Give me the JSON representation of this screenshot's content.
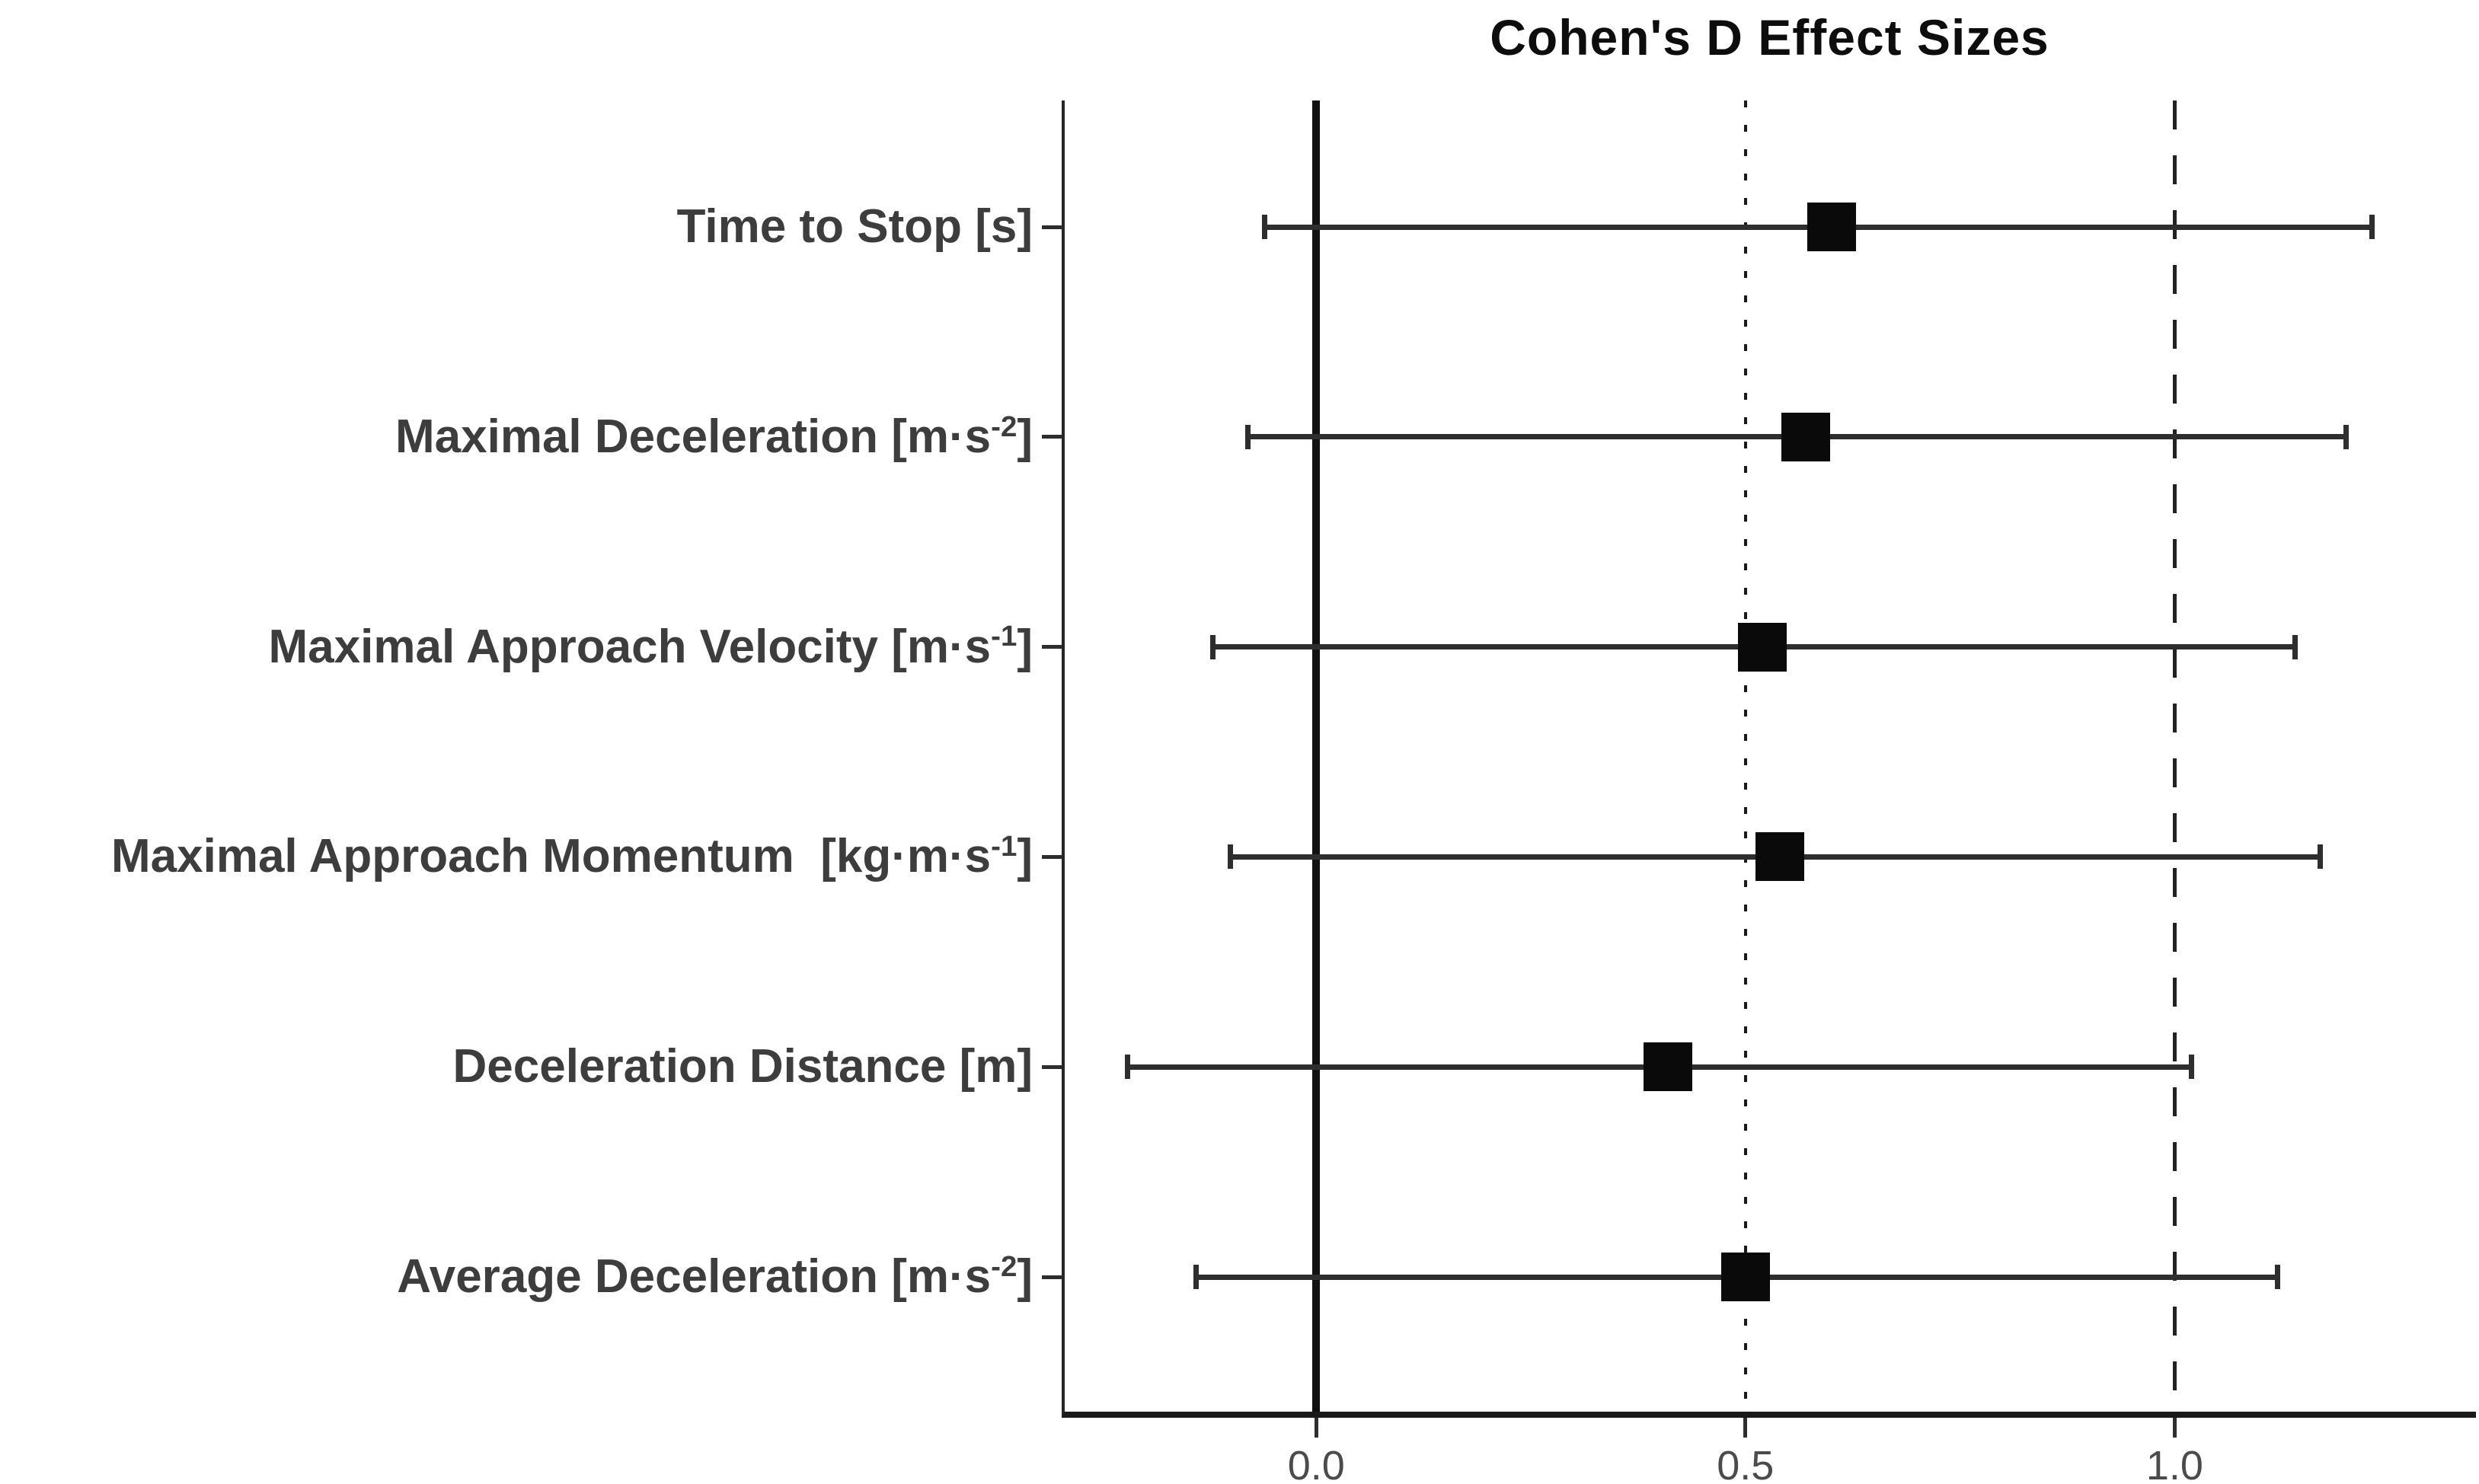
{
  "chart_data": {
    "type": "scatter",
    "subtype": "forest-dot-whisker",
    "title": "Cohen's D Effect Sizes",
    "xlabel": "",
    "ylabel": "",
    "xlim": [
      -0.293,
      1.351
    ],
    "grid": false,
    "legend": null,
    "marker_shape": "square",
    "x_ticks": [
      {
        "value": 0.0,
        "label": "0.0"
      },
      {
        "value": 0.5,
        "label": "0.5"
      },
      {
        "value": 1.0,
        "label": "1.0"
      }
    ],
    "reference_lines": [
      {
        "value": 0.0,
        "style": "solid"
      },
      {
        "value": 0.5,
        "style": "dotted"
      },
      {
        "value": 1.0,
        "style": "dashed"
      }
    ],
    "rows": [
      {
        "label": "Time to Stop",
        "unit_pre": " [s",
        "unit_sup": "",
        "unit_post": "]",
        "d": 0.6,
        "ci_low": -0.06,
        "ci_high": 1.23
      },
      {
        "label": "Maximal Deceleration",
        "unit_pre": " [m·s",
        "unit_sup": "-2",
        "unit_post": "]",
        "d": 0.57,
        "ci_low": -0.08,
        "ci_high": 1.2
      },
      {
        "label": "Maximal Approach Velocity",
        "unit_pre": " [m·s",
        "unit_sup": "-1",
        "unit_post": "]",
        "d": 0.52,
        "ci_low": -0.12,
        "ci_high": 1.14
      },
      {
        "label": "Maximal Approach Momentum",
        "unit_pre": "  [kg·m·s",
        "unit_sup": "-1",
        "unit_post": "]",
        "d": 0.54,
        "ci_low": -0.1,
        "ci_high": 1.17
      },
      {
        "label": "Deceleration Distance",
        "unit_pre": " [m",
        "unit_sup": "",
        "unit_post": "]",
        "d": 0.41,
        "ci_low": -0.22,
        "ci_high": 1.02
      },
      {
        "label": "Average Deceleration",
        "unit_pre": " [m·s",
        "unit_sup": "-2",
        "unit_post": "]",
        "d": 0.5,
        "ci_low": -0.14,
        "ci_high": 1.12
      }
    ]
  },
  "colors": {
    "background": "#ffffff",
    "title": "#0d0d0d",
    "category_labels": "#3d3d3d",
    "tick_labels": "#4b4b4b",
    "axis": "#262626",
    "zero_line": "#111111",
    "error_bars": "#2e2e2e",
    "markers": "#0a0a0a"
  }
}
